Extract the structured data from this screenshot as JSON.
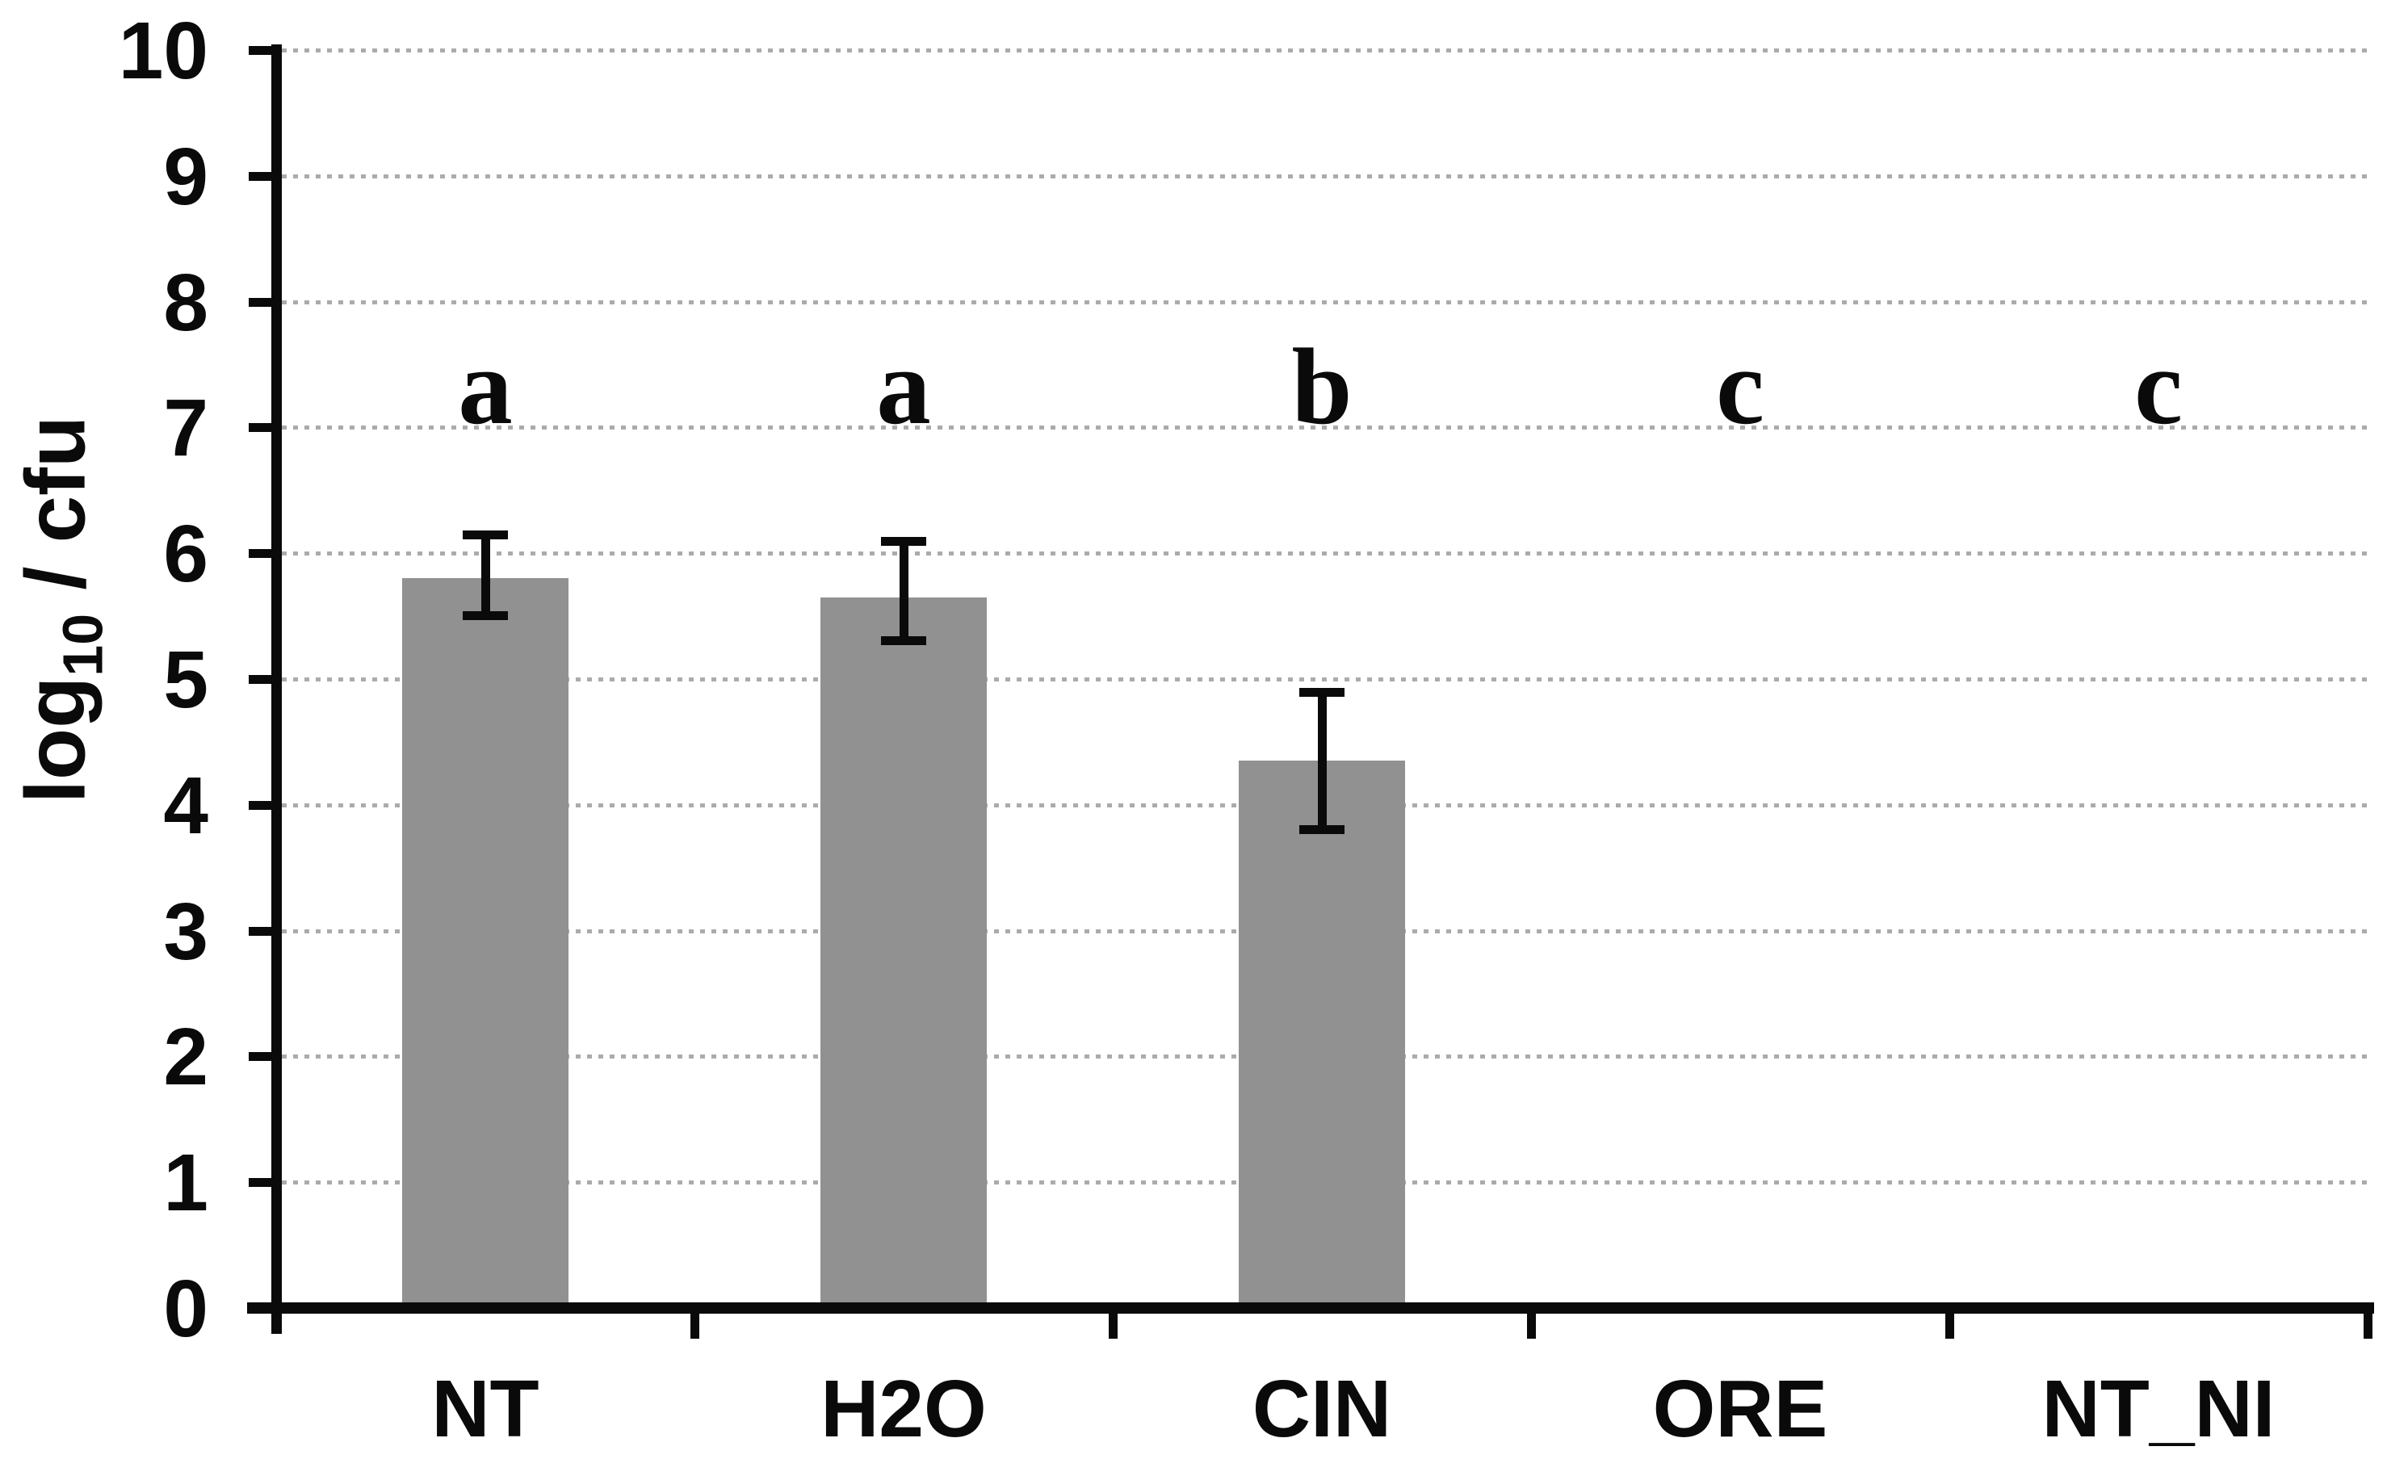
{
  "chart_data": {
    "type": "bar",
    "title": "",
    "categories": [
      "NT",
      "H2O",
      "CIN",
      "ORE",
      "NT_NI"
    ],
    "values": [
      5.8,
      5.65,
      4.35,
      0,
      0
    ],
    "error_high": [
      6.15,
      6.1,
      4.9,
      null,
      null
    ],
    "error_low": [
      5.5,
      5.3,
      3.8,
      null,
      null
    ],
    "significance_letters": [
      "a",
      "a",
      "b",
      "c",
      "c"
    ],
    "significance_letter_baseline": 7.02,
    "ylabel": {
      "main": "log",
      "sub": "10",
      "rest": " / cfu"
    },
    "xlabel": "",
    "ylim": [
      0,
      10
    ],
    "yticks": [
      "0",
      "1",
      "2",
      "3",
      "4",
      "5",
      "6",
      "7",
      "8",
      "9",
      "10"
    ],
    "grid": {
      "horizontal": true,
      "style": "dotted",
      "vertical": false
    },
    "legend": null,
    "colors": {
      "bar": "#919191",
      "axis": "#0a0a0a",
      "gridline": "#ababab",
      "text": "#0a0a0a",
      "background": "#ffffff"
    }
  }
}
